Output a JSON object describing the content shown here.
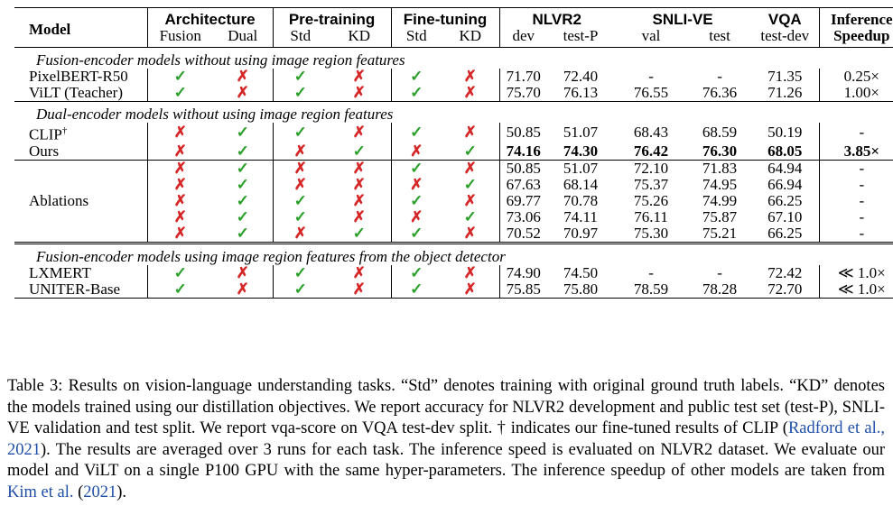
{
  "header": {
    "model": "Model",
    "architecture": "Architecture",
    "pretraining": "Pre-training",
    "finetuning": "Fine-tuning",
    "nlvr2": "NLVR2",
    "snlive": "SNLI-VE",
    "vqa": "VQA",
    "inference": "Inference",
    "speedup": "Speedup",
    "fusion": "Fusion",
    "dual": "Dual",
    "pt_std": "Std",
    "pt_kd": "KD",
    "ft_std": "Std",
    "ft_kd": "KD",
    "nlvr2_dev": "dev",
    "nlvr2_testp": "test-P",
    "snli_val": "val",
    "snli_test": "test",
    "vqa_testdev": "test-dev"
  },
  "symbols": {
    "check": "✓",
    "cross": "✗"
  },
  "sections": [
    {
      "title": "Fusion-encoder models without using image region features",
      "rows": [
        {
          "model": "PixelBERT-R50",
          "marks": [
            "✓",
            "✗",
            "✓",
            "✗",
            "✓",
            "✗"
          ],
          "vals": [
            "71.70",
            "72.40",
            "-",
            "-",
            "71.35",
            "0.25×"
          ]
        },
        {
          "model": "ViLT (Teacher)",
          "marks": [
            "✓",
            "✗",
            "✓",
            "✗",
            "✓",
            "✗"
          ],
          "vals": [
            "75.70",
            "76.13",
            "76.55",
            "76.36",
            "71.26",
            "1.00×"
          ]
        }
      ]
    },
    {
      "title": "Dual-encoder models without using image region features",
      "rows": [
        {
          "model": "CLIP",
          "sup": "†",
          "marks": [
            "✗",
            "✓",
            "✓",
            "✗",
            "✓",
            "✗"
          ],
          "vals": [
            "50.85",
            "51.07",
            "68.43",
            "68.59",
            "50.19",
            "-"
          ]
        },
        {
          "model": "Ours",
          "marks": [
            "✗",
            "✓",
            "✗",
            "✓",
            "✗",
            "✓"
          ],
          "vals": [
            "74.16",
            "74.30",
            "76.42",
            "76.30",
            "68.05",
            "3.85×"
          ]
        }
      ]
    },
    {
      "title": "Fusion-encoder models using image region features from the object detector",
      "rows": [
        {
          "model": "LXMERT",
          "marks": [
            "✓",
            "✗",
            "✓",
            "✗",
            "✓",
            "✗"
          ],
          "vals": [
            "74.90",
            "74.50",
            "-",
            "-",
            "72.42",
            "≪ 1.0×"
          ]
        },
        {
          "model": "UNITER-Base",
          "marks": [
            "✓",
            "✗",
            "✓",
            "✗",
            "✓",
            "✗"
          ],
          "vals": [
            "75.85",
            "75.80",
            "78.59",
            "78.28",
            "72.70",
            "≪ 1.0×"
          ]
        }
      ]
    }
  ],
  "ablations": {
    "label": "Ablations",
    "rows": [
      {
        "marks": [
          "✗",
          "✓",
          "✗",
          "✗",
          "✓",
          "✗"
        ],
        "vals": [
          "50.85",
          "51.07",
          "72.10",
          "71.83",
          "64.94",
          "-"
        ]
      },
      {
        "marks": [
          "✗",
          "✓",
          "✗",
          "✗",
          "✗",
          "✓"
        ],
        "vals": [
          "67.63",
          "68.14",
          "75.37",
          "74.95",
          "66.94",
          "-"
        ]
      },
      {
        "marks": [
          "✗",
          "✓",
          "✓",
          "✗",
          "✓",
          "✗"
        ],
        "vals": [
          "69.77",
          "70.78",
          "75.26",
          "74.99",
          "66.25",
          "-"
        ]
      },
      {
        "marks": [
          "✗",
          "✓",
          "✓",
          "✗",
          "✗",
          "✓"
        ],
        "vals": [
          "73.06",
          "74.11",
          "76.11",
          "75.87",
          "67.10",
          "-"
        ]
      },
      {
        "marks": [
          "✗",
          "✓",
          "✗",
          "✓",
          "✓",
          "✗"
        ],
        "vals": [
          "70.52",
          "70.97",
          "75.30",
          "75.21",
          "66.25",
          "-"
        ]
      }
    ]
  },
  "caption": {
    "p1": "Table 3: Results on vision-language understanding tasks. “Std” denotes training with original ground truth labels. “KD” denotes the models trained using our distillation objectives. We report accuracy for NLVR2 development and public test set (test-P), SNLI-VE validation and test split. We report vqa-score on VQA test-dev split. † indicates our fine-tuned results of CLIP (",
    "ref1_authors": "Radford et al.",
    "ref1_sep": ", ",
    "ref1_year": "2021",
    "p2": "). The results are averaged over 3 runs for each task. The inference speed is evaluated on NLVR2 dataset. We evaluate our model and ViLT on a single P100 GPU with the same hyper-parameters. The inference speedup of other models are taken from ",
    "ref2_authors": "Kim et al.",
    "ref2_open": " (",
    "ref2_year": "2021",
    "p3": ")."
  }
}
